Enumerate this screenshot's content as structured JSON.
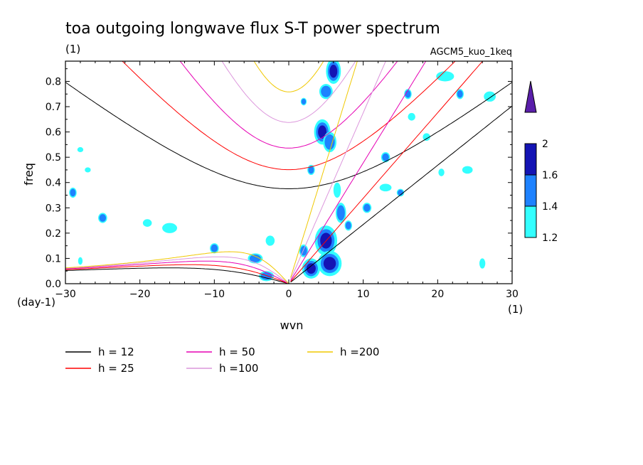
{
  "figure": {
    "title": "toa outgoing longwave flux S-T power spectrum",
    "title_unit": "(1)",
    "model_label": "AGCM5_kuo_1keq"
  },
  "chart_data": {
    "type": "heatmap",
    "xlabel": "wvn",
    "ylabel": "freq",
    "x_unit": "(1)",
    "y_unit": "(day-1)",
    "xlim": [
      -30,
      30
    ],
    "ylim": [
      0,
      0.88
    ],
    "xticks": [
      -30,
      -20,
      -10,
      0,
      10,
      20,
      30
    ],
    "yticks": [
      0,
      0.1,
      0.2,
      0.3,
      0.4,
      0.5,
      0.6,
      0.7,
      0.8
    ],
    "colorbar": {
      "levels": [
        1.2,
        1.4,
        1.6,
        2
      ],
      "colors": [
        "#33ffff",
        "#1e82ff",
        "#1414b4",
        "#5a1eaa"
      ],
      "labels": [
        "1.2",
        "1.4",
        "1.6",
        "2"
      ]
    },
    "dispersion_curves": [
      {
        "name": "h = 12",
        "h": 12,
        "color": "#000000"
      },
      {
        "name": "h = 25",
        "h": 25,
        "color": "#ff0000"
      },
      {
        "name": "h = 50",
        "h": 50,
        "color": "#e600b4"
      },
      {
        "name": "h =100",
        "h": 100,
        "color": "#dc96dc"
      },
      {
        "name": "h =200",
        "h": 200,
        "color": "#f0c800"
      }
    ],
    "blobs": [
      {
        "x": 6.0,
        "y": 0.84,
        "rx": 1.0,
        "ry": 0.05,
        "level": 2
      },
      {
        "x": 5.0,
        "y": 0.76,
        "rx": 0.9,
        "ry": 0.03,
        "level": 1
      },
      {
        "x": 4.5,
        "y": 0.6,
        "rx": 1.1,
        "ry": 0.05,
        "level": 2
      },
      {
        "x": 5.5,
        "y": 0.56,
        "rx": 0.9,
        "ry": 0.04,
        "level": 1
      },
      {
        "x": 5.0,
        "y": 0.17,
        "rx": 1.5,
        "ry": 0.06,
        "level": 2
      },
      {
        "x": 5.5,
        "y": 0.08,
        "rx": 1.6,
        "ry": 0.05,
        "level": 2
      },
      {
        "x": 3.0,
        "y": 0.06,
        "rx": 1.2,
        "ry": 0.04,
        "level": 2
      },
      {
        "x": 2.0,
        "y": 0.13,
        "rx": 0.6,
        "ry": 0.025,
        "level": 1
      },
      {
        "x": 7.0,
        "y": 0.28,
        "rx": 0.7,
        "ry": 0.04,
        "level": 1
      },
      {
        "x": 6.5,
        "y": 0.37,
        "rx": 0.5,
        "ry": 0.03,
        "level": 0
      },
      {
        "x": 3.0,
        "y": 0.45,
        "rx": 0.5,
        "ry": 0.02,
        "level": 1
      },
      {
        "x": 10.5,
        "y": 0.3,
        "rx": 0.6,
        "ry": 0.02,
        "level": 1
      },
      {
        "x": 13.0,
        "y": 0.5,
        "rx": 0.6,
        "ry": 0.02,
        "level": 1
      },
      {
        "x": 15.0,
        "y": 0.36,
        "rx": 0.5,
        "ry": 0.015,
        "level": 1
      },
      {
        "x": 16.0,
        "y": 0.75,
        "rx": 0.5,
        "ry": 0.02,
        "level": 1
      },
      {
        "x": 21.0,
        "y": 0.82,
        "rx": 1.2,
        "ry": 0.02,
        "level": 0
      },
      {
        "x": 23.0,
        "y": 0.75,
        "rx": 0.5,
        "ry": 0.02,
        "level": 1
      },
      {
        "x": 27.0,
        "y": 0.74,
        "rx": 0.8,
        "ry": 0.02,
        "level": 0
      },
      {
        "x": 24.0,
        "y": 0.45,
        "rx": 0.7,
        "ry": 0.015,
        "level": 0
      },
      {
        "x": 26.0,
        "y": 0.08,
        "rx": 0.4,
        "ry": 0.02,
        "level": 0
      },
      {
        "x": -25.0,
        "y": 0.26,
        "rx": 0.6,
        "ry": 0.02,
        "level": 1
      },
      {
        "x": -29.0,
        "y": 0.36,
        "rx": 0.5,
        "ry": 0.02,
        "level": 1
      },
      {
        "x": -16.0,
        "y": 0.22,
        "rx": 1.0,
        "ry": 0.02,
        "level": 0
      },
      {
        "x": -19.0,
        "y": 0.24,
        "rx": 0.6,
        "ry": 0.015,
        "level": 0
      },
      {
        "x": -10.0,
        "y": 0.14,
        "rx": 0.6,
        "ry": 0.02,
        "level": 1
      },
      {
        "x": -4.5,
        "y": 0.1,
        "rx": 1.0,
        "ry": 0.02,
        "level": 1
      },
      {
        "x": -3.0,
        "y": 0.03,
        "rx": 1.0,
        "ry": 0.02,
        "level": 1
      },
      {
        "x": -2.5,
        "y": 0.17,
        "rx": 0.6,
        "ry": 0.02,
        "level": 0
      },
      {
        "x": -28.0,
        "y": 0.09,
        "rx": 0.3,
        "ry": 0.015,
        "level": 0
      },
      {
        "x": -27.0,
        "y": 0.45,
        "rx": 0.4,
        "ry": 0.01,
        "level": 0
      },
      {
        "x": -28.0,
        "y": 0.53,
        "rx": 0.4,
        "ry": 0.01,
        "level": 0
      },
      {
        "x": 2.0,
        "y": 0.72,
        "rx": 0.4,
        "ry": 0.015,
        "level": 1
      },
      {
        "x": 16.5,
        "y": 0.66,
        "rx": 0.5,
        "ry": 0.015,
        "level": 0
      },
      {
        "x": 18.5,
        "y": 0.58,
        "rx": 0.5,
        "ry": 0.015,
        "level": 0
      },
      {
        "x": 13.0,
        "y": 0.38,
        "rx": 0.8,
        "ry": 0.015,
        "level": 0
      },
      {
        "x": 20.5,
        "y": 0.44,
        "rx": 0.4,
        "ry": 0.015,
        "level": 0
      },
      {
        "x": 8.0,
        "y": 0.23,
        "rx": 0.5,
        "ry": 0.02,
        "level": 1
      }
    ]
  }
}
